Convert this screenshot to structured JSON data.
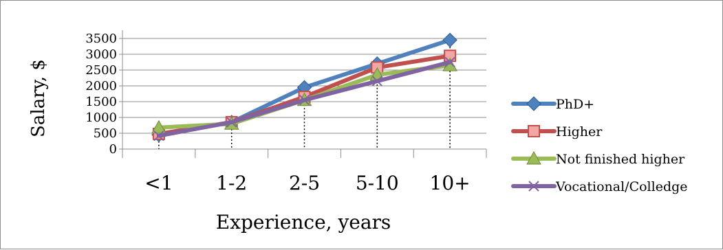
{
  "chart_data": {
    "type": "line",
    "title": "",
    "xlabel": "Experience, years",
    "ylabel": "Salary, $",
    "categories": [
      "<1",
      "1-2",
      "2-5",
      "5-10",
      "10+"
    ],
    "ylim": [
      0,
      3500
    ],
    "yticks": [
      0,
      500,
      1000,
      1500,
      2000,
      2500,
      3000,
      3500
    ],
    "grid": true,
    "legend_position": "right",
    "drop_lines": true,
    "series": [
      {
        "name": "PhD+",
        "color": "#4f81bd",
        "marker": "diamond",
        "values": [
          450,
          850,
          1950,
          2700,
          3450
        ]
      },
      {
        "name": "Higher",
        "color": "#c0504d",
        "marker": "square",
        "values": [
          480,
          850,
          1650,
          2580,
          2950
        ]
      },
      {
        "name": "Not finished higher",
        "color": "#9bbb59",
        "marker": "triangle",
        "values": [
          680,
          800,
          1550,
          2350,
          2650
        ]
      },
      {
        "name": "Vocational/Colledge",
        "color": "#8064a2",
        "marker": "x",
        "values": [
          420,
          850,
          1550,
          2150,
          2750
        ]
      }
    ]
  }
}
